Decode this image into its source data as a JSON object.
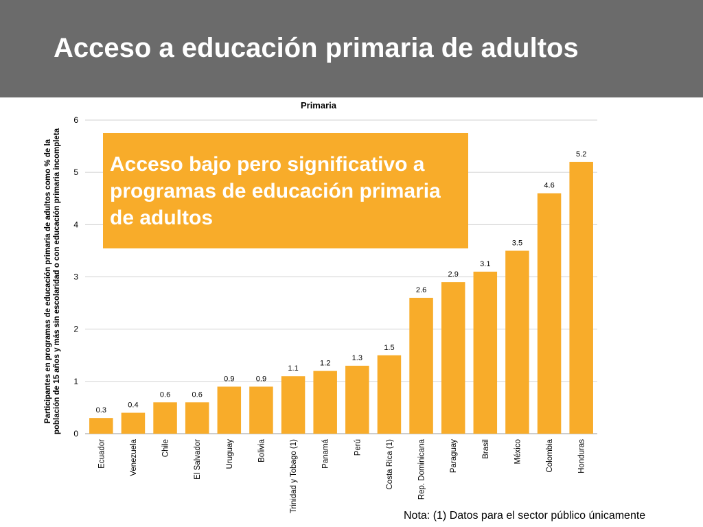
{
  "slide": {
    "title": "Acceso a educación primaria de adultos",
    "callout": "Acceso bajo pero significativo a programas de educación primaria de adultos",
    "note": "Nota: (1) Datos para el sector público únicamente"
  },
  "colors": {
    "header": "#6b6b6b",
    "bar": "#f8ac2a",
    "callout": "#f8ac2a",
    "grid": "#d0d0d0"
  },
  "chart_data": {
    "type": "bar",
    "title": "Primaria",
    "ylabel_lines": [
      "Participantes en programas de educación primaria de adultos como % de la",
      "población de 15 años y más sin escolaridad o con educación primaria incompleta"
    ],
    "xlabel": "",
    "ylim": [
      0,
      6
    ],
    "yticks": [
      0,
      1,
      2,
      3,
      4,
      5,
      6
    ],
    "grid": true,
    "legend": "none",
    "categories": [
      "Ecuador",
      "Venezuela",
      "Chile",
      "El Salvador",
      "Uruguay",
      "Bolivia",
      "Trinidad y Tobago (1)",
      "Panamá",
      "Perú",
      "Costa Rica (1)",
      "Rep. Dominicana",
      "Paraguay",
      "Brasil",
      "México",
      "Colombia",
      "Honduras"
    ],
    "values": [
      0.3,
      0.4,
      0.6,
      0.6,
      0.9,
      0.9,
      1.1,
      1.2,
      1.3,
      1.5,
      2.6,
      2.9,
      3.1,
      3.5,
      4.6,
      5.2
    ],
    "data_labels": [
      "0.3",
      "0.4",
      "0.6",
      "0.6",
      "0.9",
      "0.9",
      "1.1",
      "1.2",
      "1.3",
      "1.5",
      "2.6",
      "2.9",
      "3.1",
      "3.5",
      "4.6",
      "5.2"
    ]
  }
}
